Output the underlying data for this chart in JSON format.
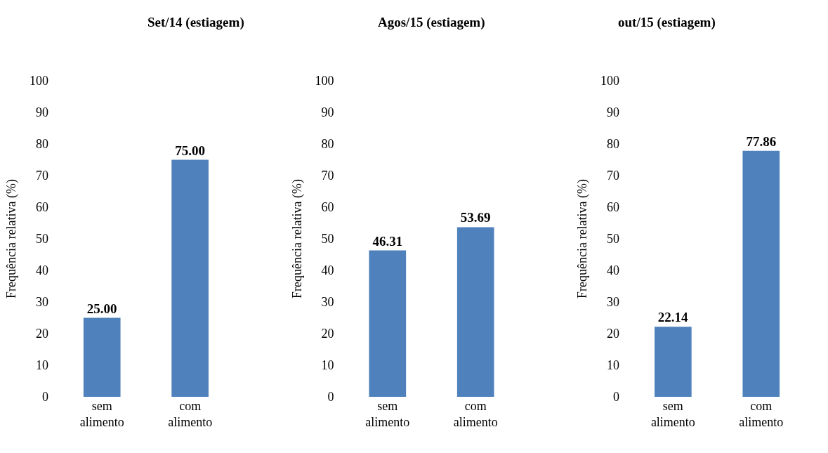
{
  "chart_data": [
    {
      "type": "bar",
      "title": "Set/14 (estiagem)",
      "ylabel": "Frequência relativa (%)",
      "categories": [
        "sem alimento",
        "com alimento"
      ],
      "values": [
        25.0,
        75.0
      ],
      "value_labels": [
        "25.00",
        "75.00"
      ],
      "color": "#4f81bd",
      "ylim": [
        0,
        100
      ],
      "yticks": [
        0,
        10,
        20,
        30,
        40,
        50,
        60,
        70,
        80,
        90,
        100
      ]
    },
    {
      "type": "bar",
      "title": "Agos/15 (estiagem)",
      "ylabel": "Frequência relativa (%)",
      "categories": [
        "sem alimento",
        "com alimento"
      ],
      "values": [
        46.31,
        53.69
      ],
      "value_labels": [
        "46.31",
        "53.69"
      ],
      "color": "#4f81bd",
      "ylim": [
        0,
        100
      ],
      "yticks": [
        0,
        10,
        20,
        30,
        40,
        50,
        60,
        70,
        80,
        90,
        100
      ]
    },
    {
      "type": "bar",
      "title": "out/15 (estiagem)",
      "ylabel": "Frequência relativa (%)",
      "categories": [
        "sem alimento",
        "com alimento"
      ],
      "values": [
        22.14,
        77.86
      ],
      "value_labels": [
        "22.14",
        "77.86"
      ],
      "color": "#4f81bd",
      "ylim": [
        0,
        100
      ],
      "yticks": [
        0,
        10,
        20,
        30,
        40,
        50,
        60,
        70,
        80,
        90,
        100
      ]
    }
  ]
}
